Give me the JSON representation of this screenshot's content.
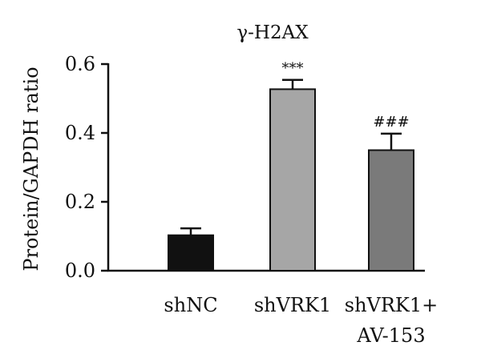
{
  "chart_data": {
    "type": "bar",
    "title": "γ-H2AX",
    "ylabel": "Protein/GAPDH ratio",
    "xlabel": "",
    "ylim": [
      0,
      0.6
    ],
    "yticks": [
      "0.0",
      "0.2",
      "0.4",
      "0.6"
    ],
    "grid": false,
    "categories": [
      {
        "lines": [
          "shNC"
        ]
      },
      {
        "lines": [
          "shVRK1"
        ]
      },
      {
        "lines": [
          "shVRK1+",
          "AV-153"
        ]
      }
    ],
    "values": [
      0.103,
      0.527,
      0.35
    ],
    "errors": [
      0.02,
      0.027,
      0.048
    ],
    "annotations": [
      "",
      "***",
      "###"
    ],
    "colors": [
      "#111111",
      "#a6a6a6",
      "#7a7a7a"
    ]
  }
}
